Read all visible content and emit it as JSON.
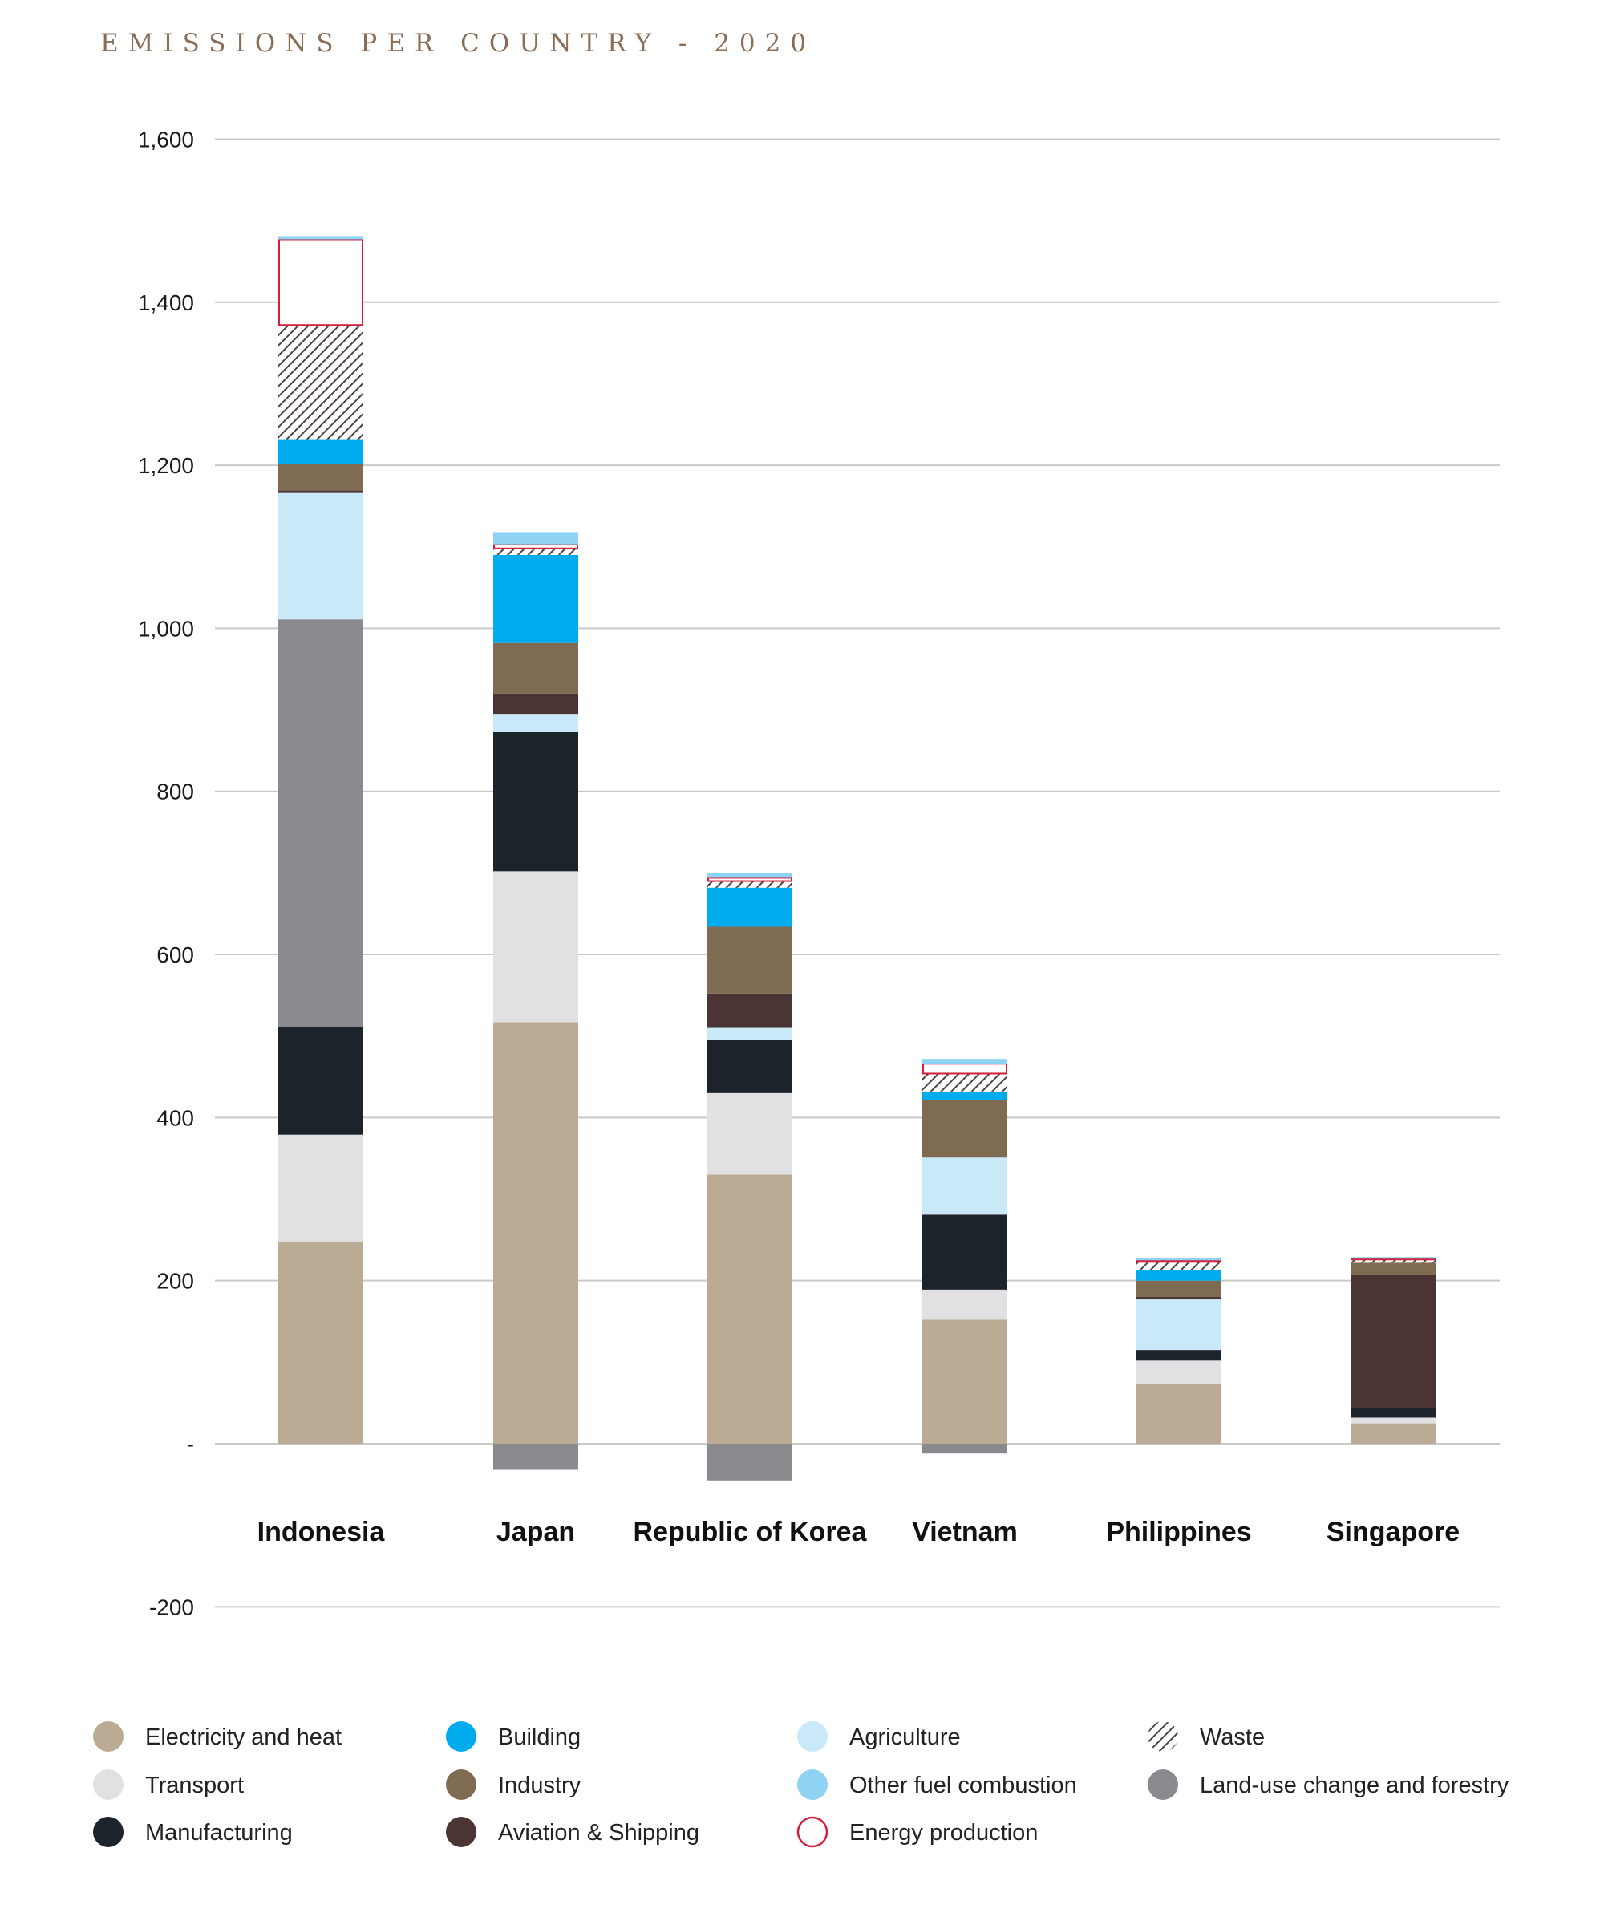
{
  "chart_data": {
    "type": "bar",
    "stacked": true,
    "title": "EMISSIONS PER COUNTRY - 2020",
    "xlabel": "",
    "ylabel": "",
    "ylim": [
      -200,
      1600
    ],
    "yticks": [
      {
        "value": 1600,
        "label": "1,600"
      },
      {
        "value": 1400,
        "label": "1,400"
      },
      {
        "value": 1200,
        "label": "1,200"
      },
      {
        "value": 1000,
        "label": "1,000"
      },
      {
        "value": 800,
        "label": "800"
      },
      {
        "value": 600,
        "label": "600"
      },
      {
        "value": 400,
        "label": "400"
      },
      {
        "value": 200,
        "label": "200"
      },
      {
        "value": 0,
        "label": "-"
      },
      {
        "value": -200,
        "label": "-200"
      }
    ],
    "grid": true,
    "legend_position": "bottom",
    "categories": [
      "Indonesia",
      "Japan",
      "Republic of Korea",
      "Vietnam",
      "Philippines",
      "Singapore"
    ],
    "series": [
      {
        "name": "Electricity and heat",
        "color": "#bcab94",
        "values": [
          247,
          517,
          330,
          152,
          73,
          25
        ]
      },
      {
        "name": "Transport",
        "color": "#e1e1e3",
        "values": [
          132,
          185,
          100,
          37,
          29,
          7
        ]
      },
      {
        "name": "Manufacturing",
        "color": "#1d232b",
        "values": [
          132,
          171,
          65,
          92,
          13,
          12
        ]
      },
      {
        "name": "Land-use change and forestry",
        "color": "#8a898e",
        "values": [
          500,
          -32,
          -45,
          -12,
          0,
          0
        ]
      },
      {
        "name": "Agriculture",
        "color": "#c9e8f8",
        "values": [
          155,
          22,
          15,
          70,
          62,
          0
        ]
      },
      {
        "name": "Aviation & Shipping",
        "color": "#4a3434",
        "values": [
          3,
          25,
          42,
          1,
          3,
          163
        ]
      },
      {
        "name": "Industry",
        "color": "#7f6a52",
        "values": [
          33,
          62,
          82,
          70,
          20,
          15
        ]
      },
      {
        "name": "Building",
        "color": "#00acee",
        "values": [
          30,
          108,
          48,
          10,
          13,
          0
        ]
      },
      {
        "name": "Waste",
        "color": "#5a4f48",
        "pattern": "hatch",
        "values": [
          140,
          8,
          8,
          22,
          10,
          4
        ]
      },
      {
        "name": "Energy production",
        "color": "#d21f3c",
        "pattern": "outline",
        "values": [
          105,
          5,
          4,
          12,
          2,
          1
        ]
      },
      {
        "name": "Other fuel combustion",
        "color": "#8fd3f4",
        "values": [
          4,
          15,
          6,
          6,
          3,
          2
        ]
      }
    ],
    "legend": [
      {
        "name": "Electricity and heat",
        "color": "#bcab94",
        "style": "solid"
      },
      {
        "name": "Building",
        "color": "#00acee",
        "style": "solid"
      },
      {
        "name": "Agriculture",
        "color": "#c9e8f8",
        "style": "solid"
      },
      {
        "name": "Waste",
        "color": "#5a4f48",
        "style": "hatch"
      },
      {
        "name": "Transport",
        "color": "#e1e1e3",
        "style": "solid"
      },
      {
        "name": "Industry",
        "color": "#7f6a52",
        "style": "solid"
      },
      {
        "name": "Other fuel combustion",
        "color": "#8fd3f4",
        "style": "solid"
      },
      {
        "name": "Land-use change and forestry",
        "color": "#8a898e",
        "style": "solid"
      },
      {
        "name": "Manufacturing",
        "color": "#1d232b",
        "style": "solid"
      },
      {
        "name": "Aviation & Shipping",
        "color": "#4a3434",
        "style": "solid"
      },
      {
        "name": "Energy production",
        "color": "#d21f3c",
        "style": "outline"
      }
    ]
  }
}
